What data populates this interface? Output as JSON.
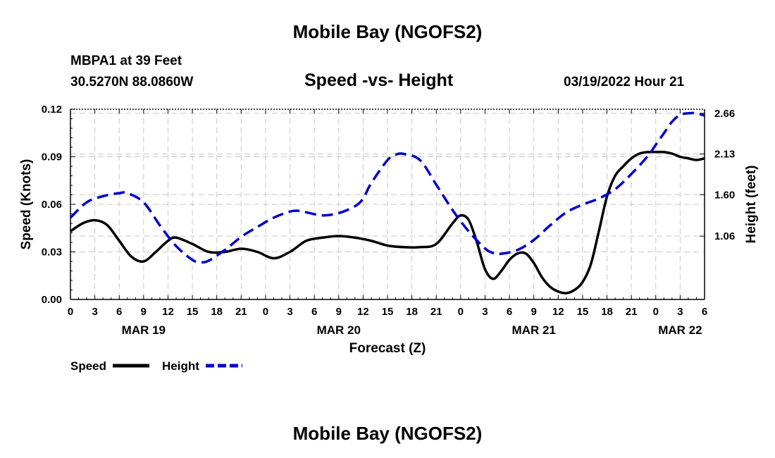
{
  "page": {
    "title_top": "Mobile Bay (NGOFS2)",
    "title_bottom": "Mobile Bay (NGOFS2)",
    "station": "MBPA1 at 39 Feet",
    "coords": "30.5270N  88.0860W",
    "subtitle": "Speed -vs- Height",
    "datetime": "03/19/2022 Hour 21"
  },
  "chart_data": {
    "type": "line",
    "title": "Speed -vs- Height",
    "xlabel": "Forecast (Z)",
    "ylabel_left": "Speed (Knots)",
    "ylabel_right": "Height (feet)",
    "x_unit": "hours from MAR 19 00Z",
    "xlim": [
      0,
      78
    ],
    "ylim_left": [
      0,
      0.12
    ],
    "ylim_right": [
      0.235,
      2.713
    ],
    "x_ticks": [
      0,
      3,
      6,
      9,
      12,
      15,
      18,
      21,
      24,
      27,
      30,
      33,
      36,
      39,
      42,
      45,
      48,
      51,
      54,
      57,
      60,
      63,
      66,
      69,
      72,
      75,
      78
    ],
    "x_tick_labels": [
      "0",
      "3",
      "6",
      "9",
      "12",
      "15",
      "18",
      "21",
      "0",
      "3",
      "6",
      "9",
      "12",
      "15",
      "18",
      "21",
      "0",
      "3",
      "6",
      "9",
      "12",
      "15",
      "18",
      "21",
      "0",
      "3",
      "6"
    ],
    "date_labels": [
      {
        "x": 9,
        "label": "MAR 19"
      },
      {
        "x": 33,
        "label": "MAR 20"
      },
      {
        "x": 57,
        "label": "MAR 21"
      },
      {
        "x": 75,
        "label": "MAR 22"
      }
    ],
    "left_ticks": [
      {
        "value": 0.0,
        "label": "0.00"
      },
      {
        "value": 0.03,
        "label": "0.03"
      },
      {
        "value": 0.06,
        "label": "0.06"
      },
      {
        "value": 0.09,
        "label": "0.09"
      },
      {
        "value": 0.12,
        "label": "0.12"
      }
    ],
    "right_ticks": [
      {
        "value": 1.06,
        "label": "1.06"
      },
      {
        "value": 1.6,
        "label": "1.60"
      },
      {
        "value": 2.13,
        "label": "2.13"
      },
      {
        "value": 2.66,
        "label": "2.66"
      }
    ],
    "grid": true,
    "legend_position": "bottom-left",
    "series": [
      {
        "name": "Speed",
        "axis": "left",
        "color": "#000000",
        "style": "solid",
        "x": [
          0,
          1.5,
          3,
          4.5,
          6,
          7.5,
          9,
          10.5,
          12,
          13,
          15,
          17,
          19,
          21,
          23,
          25,
          27,
          29,
          31,
          33,
          35,
          37,
          39,
          41,
          43,
          45,
          47,
          48,
          49,
          50,
          51,
          52,
          53,
          54,
          55,
          56,
          57,
          58,
          59,
          60,
          61,
          62,
          63,
          64,
          65,
          66,
          67,
          68,
          69,
          70,
          71,
          72,
          73,
          74,
          75,
          76,
          77,
          78
        ],
        "y": [
          0.043,
          0.048,
          0.05,
          0.047,
          0.037,
          0.027,
          0.024,
          0.03,
          0.037,
          0.039,
          0.035,
          0.03,
          0.03,
          0.032,
          0.03,
          0.026,
          0.03,
          0.037,
          0.039,
          0.04,
          0.039,
          0.037,
          0.034,
          0.033,
          0.033,
          0.035,
          0.048,
          0.053,
          0.05,
          0.036,
          0.019,
          0.013,
          0.018,
          0.025,
          0.029,
          0.029,
          0.023,
          0.014,
          0.008,
          0.005,
          0.004,
          0.006,
          0.011,
          0.022,
          0.043,
          0.065,
          0.078,
          0.084,
          0.089,
          0.092,
          0.093,
          0.093,
          0.093,
          0.092,
          0.09,
          0.089,
          0.088,
          0.089
        ]
      },
      {
        "name": "Height",
        "axis": "right",
        "color": "#0000cc",
        "style": "dashed",
        "x": [
          0,
          2,
          4,
          6,
          7,
          9,
          11,
          13,
          15,
          16,
          17,
          19,
          21,
          23,
          25,
          27,
          28,
          29,
          31,
          33,
          35,
          36,
          37,
          39,
          40,
          41,
          43,
          45,
          47,
          49,
          51,
          52,
          53,
          55,
          57,
          59,
          61,
          63,
          65,
          67,
          69,
          71,
          72,
          73,
          74,
          75,
          76,
          77,
          78
        ],
        "y": [
          1.3,
          1.5,
          1.58,
          1.62,
          1.62,
          1.5,
          1.2,
          0.93,
          0.75,
          0.72,
          0.74,
          0.88,
          1.05,
          1.18,
          1.3,
          1.38,
          1.39,
          1.37,
          1.33,
          1.36,
          1.45,
          1.55,
          1.75,
          2.05,
          2.12,
          2.13,
          2.05,
          1.73,
          1.4,
          1.12,
          0.9,
          0.84,
          0.83,
          0.88,
          1.01,
          1.2,
          1.37,
          1.47,
          1.55,
          1.67,
          1.87,
          2.1,
          2.25,
          2.4,
          2.55,
          2.64,
          2.66,
          2.66,
          2.63
        ]
      }
    ]
  }
}
